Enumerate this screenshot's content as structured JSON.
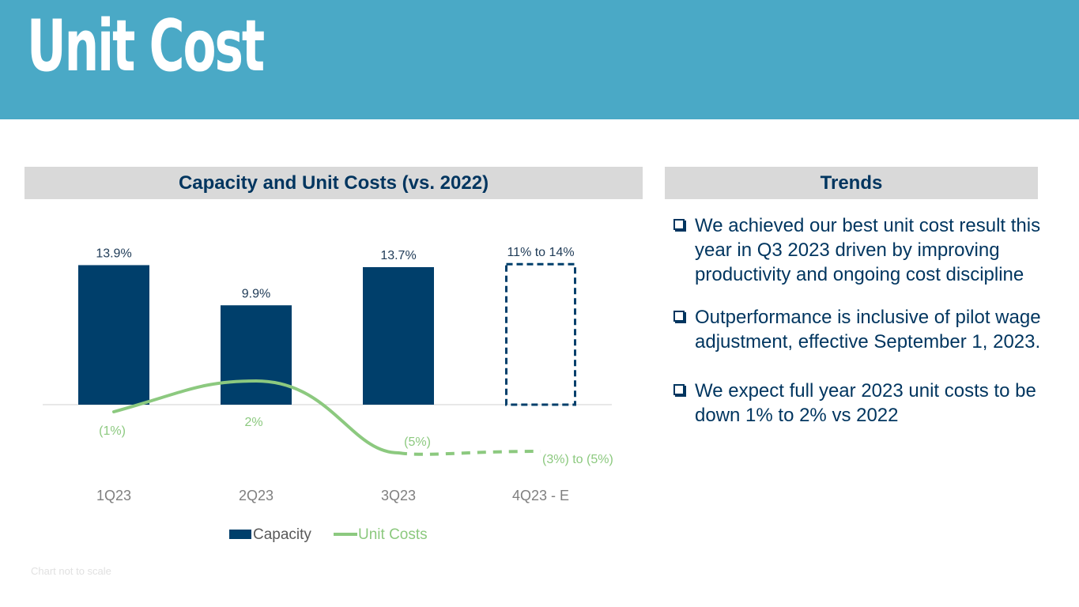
{
  "title": "Unit Cost",
  "chart_section": {
    "heading": "Capacity and Unit Costs (vs. 2022)"
  },
  "trends_section": {
    "heading": "Trends",
    "bullets": [
      "We achieved our best unit cost result this year in Q3 2023 driven by improving productivity and ongoing cost discipline",
      "Outperformance is inclusive of pilot wage adjustment, effective September 1, 2023.",
      "We expect full year 2023 unit costs to be down 1% to 2% vs 2022"
    ]
  },
  "footnote": "Chart not to scale",
  "colors": {
    "banner": "#4aa9c6",
    "capacity": "#003f6b",
    "unit_costs": "#8cc97f",
    "text_dark": "#00355f"
  },
  "chart_data": {
    "type": "bar",
    "categories": [
      "1Q23",
      "2Q23",
      "3Q23",
      "4Q23 - E"
    ],
    "series": [
      {
        "name": "Capacity",
        "type": "bar",
        "values": [
          13.9,
          9.9,
          13.7,
          14
        ],
        "estimate_range": [
          11,
          14
        ],
        "estimated": [
          false,
          false,
          false,
          true
        ],
        "labels": [
          "13.9%",
          "9.9%",
          "13.7%",
          "11% to 14%"
        ]
      },
      {
        "name": "Unit Costs",
        "type": "line",
        "values": [
          -1,
          2,
          -5,
          -5
        ],
        "estimated": [
          false,
          false,
          false,
          true
        ],
        "labels": [
          "(1%)",
          "2%",
          "(5%)",
          "(3%) to (5%)"
        ]
      }
    ],
    "legend": [
      "Capacity",
      "Unit Costs"
    ],
    "legend_position": "bottom"
  }
}
